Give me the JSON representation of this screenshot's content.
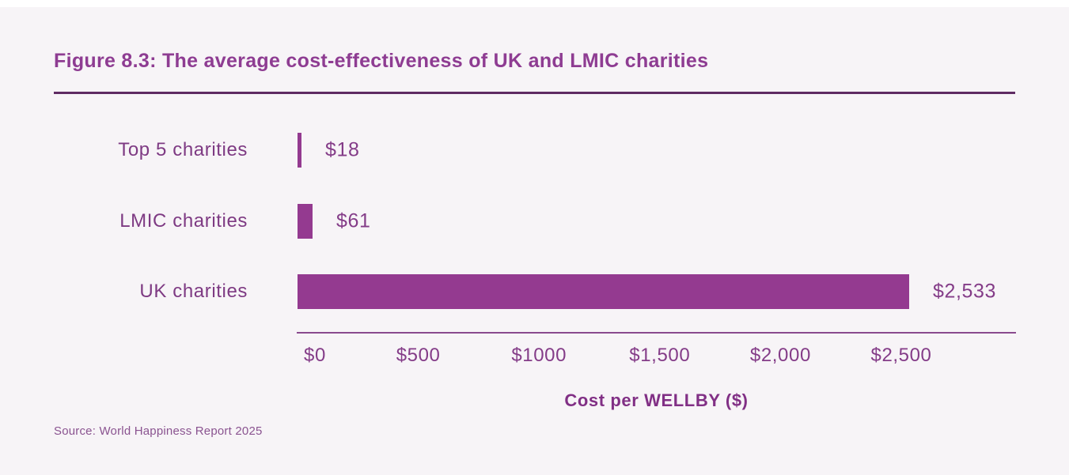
{
  "figure": {
    "title": "Figure 8.3: The average cost-effectiveness of UK and LMIC charities",
    "source": "Source: World Happiness Report 2025"
  },
  "chart_data": {
    "type": "bar",
    "orientation": "horizontal",
    "title": "Figure 8.3: The average cost-effectiveness of UK and LMIC charities",
    "categories": [
      "Top 5 charities",
      "LMIC charities",
      "UK charities"
    ],
    "values": [
      18,
      61,
      2533
    ],
    "value_labels": [
      "$18",
      "$61",
      "$2,533"
    ],
    "xlabel": "Cost per WELLBY ($)",
    "ylabel": "",
    "xticks": [
      {
        "label": "$0",
        "value": 0
      },
      {
        "label": "$500",
        "value": 500
      },
      {
        "label": "$1000",
        "value": 1000
      },
      {
        "label": "$1,500",
        "value": 1500
      },
      {
        "label": "$2,000",
        "value": 2000
      },
      {
        "label": "$2,500",
        "value": 2500
      }
    ],
    "xlim": [
      0,
      2975
    ],
    "grid": false,
    "legend": "none",
    "bar_color": "#943a90",
    "background_color": "#f7f4f7",
    "accent_text_color": "#843c88"
  }
}
